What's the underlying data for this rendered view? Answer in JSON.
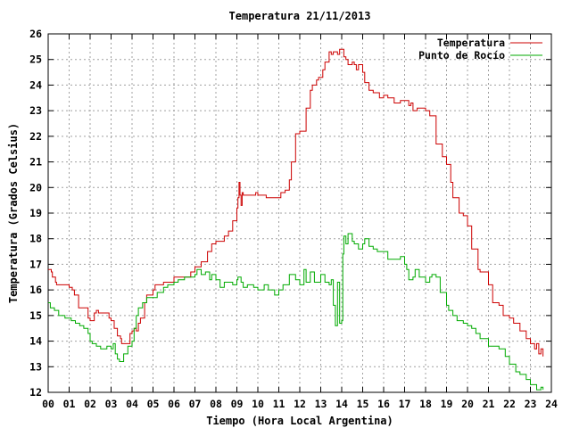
{
  "chart_data": {
    "type": "line",
    "title": "Temperatura 21/11/2013",
    "xlabel": "Tiempo (Hora Local Argentina)",
    "ylabel": "Temperatura (Grados Celsius)",
    "xlim": [
      0,
      24
    ],
    "ylim": [
      12,
      26
    ],
    "grid": true,
    "legend_position": "top-right",
    "xticks": [
      "00",
      "01",
      "02",
      "03",
      "04",
      "05",
      "06",
      "07",
      "08",
      "09",
      "10",
      "11",
      "12",
      "13",
      "14",
      "15",
      "16",
      "17",
      "18",
      "19",
      "20",
      "21",
      "22",
      "23",
      "24"
    ],
    "yticks": [
      "12",
      "13",
      "14",
      "15",
      "16",
      "17",
      "18",
      "19",
      "20",
      "21",
      "22",
      "23",
      "24",
      "25",
      "26"
    ],
    "series": [
      {
        "name": "Temperatura",
        "color": "#cc0000",
        "x": [
          0,
          0.15,
          0.2,
          0.35,
          0.4,
          0.5,
          1,
          1.15,
          1.25,
          1.4,
          1.45,
          1.6,
          1.9,
          2,
          2.1,
          2.2,
          2.3,
          2.4,
          2.5,
          2.9,
          3,
          3.15,
          3.3,
          3.45,
          3.5,
          3.6,
          3.9,
          4,
          4.1,
          4.2,
          4.3,
          4.4,
          4.6,
          4.7,
          5,
          5.1,
          5.5,
          6,
          6.2,
          6.5,
          6.8,
          7,
          7.3,
          7.6,
          7.8,
          8,
          8.2,
          8.4,
          8.6,
          8.8,
          9,
          9.05,
          9.1,
          9.15,
          9.2,
          9.25,
          9.3,
          9.5,
          9.9,
          10,
          10.1,
          10.4,
          10.5,
          11,
          11.1,
          11.3,
          11.5,
          11.6,
          11.8,
          12,
          12.3,
          12.5,
          12.6,
          12.8,
          12.9,
          13.1,
          13.2,
          13.4,
          13.5,
          13.6,
          13.8,
          13.9,
          14.1,
          14.2,
          14.3,
          14.5,
          14.6,
          14.7,
          14.8,
          14.9,
          15,
          15.1,
          15.3,
          15.5,
          15.8,
          16,
          16.2,
          16.5,
          16.8,
          17,
          17.2,
          17.3,
          17.4,
          17.6,
          17.8,
          18,
          18.2,
          18.5,
          18.8,
          19,
          19.2,
          19.3,
          19.6,
          19.8,
          20,
          20.2,
          20.5,
          20.6,
          21,
          21.2,
          21.5,
          21.7,
          22,
          22.2,
          22.5,
          22.8,
          23,
          23.2,
          23.3,
          23.4,
          23.5,
          23.6
        ],
        "values": [
          16.8,
          16.7,
          16.5,
          16.3,
          16.2,
          16.2,
          16.1,
          16,
          15.8,
          15.8,
          15.3,
          15.3,
          14.9,
          14.8,
          14.8,
          15.1,
          15.2,
          15.1,
          15.1,
          14.9,
          14.8,
          14.5,
          14.2,
          14.1,
          13.9,
          13.9,
          14.3,
          14.4,
          14.5,
          14.4,
          14.7,
          14.9,
          15.5,
          15.8,
          16,
          16.2,
          16.3,
          16.5,
          16.5,
          16.5,
          16.7,
          16.9,
          17.1,
          17.5,
          17.8,
          17.9,
          17.9,
          18.1,
          18.3,
          18.7,
          19.2,
          19.6,
          20.2,
          19.7,
          19.3,
          19.8,
          19.7,
          19.7,
          19.8,
          19.7,
          19.7,
          19.6,
          19.6,
          19.6,
          19.8,
          19.9,
          20.3,
          21,
          22.1,
          22.2,
          23.1,
          23.8,
          24,
          24.2,
          24.3,
          24.6,
          24.9,
          25.3,
          25.2,
          25.3,
          25.2,
          25.4,
          25.1,
          25,
          24.8,
          24.9,
          24.8,
          24.6,
          24.8,
          24.8,
          24.5,
          24.1,
          23.8,
          23.7,
          23.5,
          23.6,
          23.5,
          23.3,
          23.4,
          23.4,
          23.2,
          23.3,
          23,
          23.1,
          23.1,
          23,
          22.8,
          21.7,
          21.2,
          20.9,
          20.2,
          19.6,
          19,
          18.9,
          18.5,
          17.6,
          16.8,
          16.7,
          16.2,
          15.5,
          15.4,
          15,
          14.9,
          14.7,
          14.4,
          14.1,
          13.9,
          13.7,
          13.9,
          13.5,
          13.7,
          13.4
        ]
      },
      {
        "name": "Punto de Rocío",
        "color": "#00aa00",
        "x": [
          0,
          0.1,
          0.3,
          0.5,
          0.8,
          1,
          1.1,
          1.3,
          1.5,
          1.7,
          1.9,
          2,
          2.1,
          2.2,
          2.3,
          2.5,
          2.8,
          3,
          3.1,
          3.2,
          3.3,
          3.4,
          3.6,
          3.8,
          4,
          4.1,
          4.2,
          4.3,
          4.5,
          4.7,
          5,
          5.2,
          5.5,
          5.7,
          6,
          6.2,
          6.5,
          6.8,
          7,
          7.1,
          7.3,
          7.5,
          7.7,
          7.8,
          8,
          8.2,
          8.4,
          8.6,
          8.8,
          9,
          9.05,
          9.1,
          9.2,
          9.3,
          9.5,
          9.8,
          10,
          10.3,
          10.5,
          10.8,
          11,
          11.2,
          11.5,
          11.8,
          12,
          12.2,
          12.3,
          12.5,
          12.7,
          13,
          13.2,
          13.4,
          13.5,
          13.6,
          13.7,
          13.8,
          13.9,
          14,
          14.05,
          14.1,
          14.2,
          14.3,
          14.5,
          14.6,
          14.8,
          15,
          15.1,
          15.3,
          15.5,
          15.7,
          16,
          16.2,
          16.5,
          16.8,
          17,
          17.1,
          17.2,
          17.4,
          17.5,
          17.7,
          18,
          18.2,
          18.3,
          18.5,
          18.7,
          19,
          19.1,
          19.3,
          19.5,
          19.8,
          20,
          20.2,
          20.4,
          20.6,
          21,
          21.2,
          21.5,
          21.8,
          22,
          22.3,
          22.5,
          22.8,
          23,
          23.3,
          23.5,
          23.6
        ],
        "values": [
          15.5,
          15.3,
          15.2,
          15,
          14.9,
          14.9,
          14.8,
          14.7,
          14.6,
          14.5,
          14.3,
          14,
          13.9,
          13.9,
          13.8,
          13.7,
          13.8,
          13.7,
          13.9,
          13.5,
          13.3,
          13.2,
          13.5,
          13.8,
          14,
          14.5,
          15,
          15.3,
          15.5,
          15.7,
          15.7,
          15.9,
          16.1,
          16.2,
          16.3,
          16.4,
          16.5,
          16.5,
          16.6,
          16.8,
          16.6,
          16.7,
          16.4,
          16.6,
          16.4,
          16.1,
          16.3,
          16.3,
          16.2,
          16.4,
          16.5,
          16.5,
          16.3,
          16.1,
          16.2,
          16.1,
          16,
          16.2,
          16,
          15.8,
          16,
          16.2,
          16.6,
          16.4,
          16.2,
          16.8,
          16.3,
          16.7,
          16.3,
          16.6,
          16.3,
          16.2,
          16.4,
          15.4,
          14.6,
          16.3,
          14.7,
          14.8,
          17.4,
          18.1,
          17.8,
          18.2,
          17.9,
          17.8,
          17.6,
          17.8,
          18,
          17.7,
          17.6,
          17.5,
          17.5,
          17.2,
          17.2,
          17.3,
          17,
          16.8,
          16.4,
          16.5,
          16.8,
          16.5,
          16.3,
          16.5,
          16.6,
          16.5,
          15.9,
          15.4,
          15.2,
          15,
          14.8,
          14.7,
          14.6,
          14.5,
          14.3,
          14.1,
          13.8,
          13.8,
          13.7,
          13.4,
          13.1,
          12.8,
          12.7,
          12.5,
          12.3,
          12.1,
          12.2,
          12.1
        ]
      }
    ]
  }
}
